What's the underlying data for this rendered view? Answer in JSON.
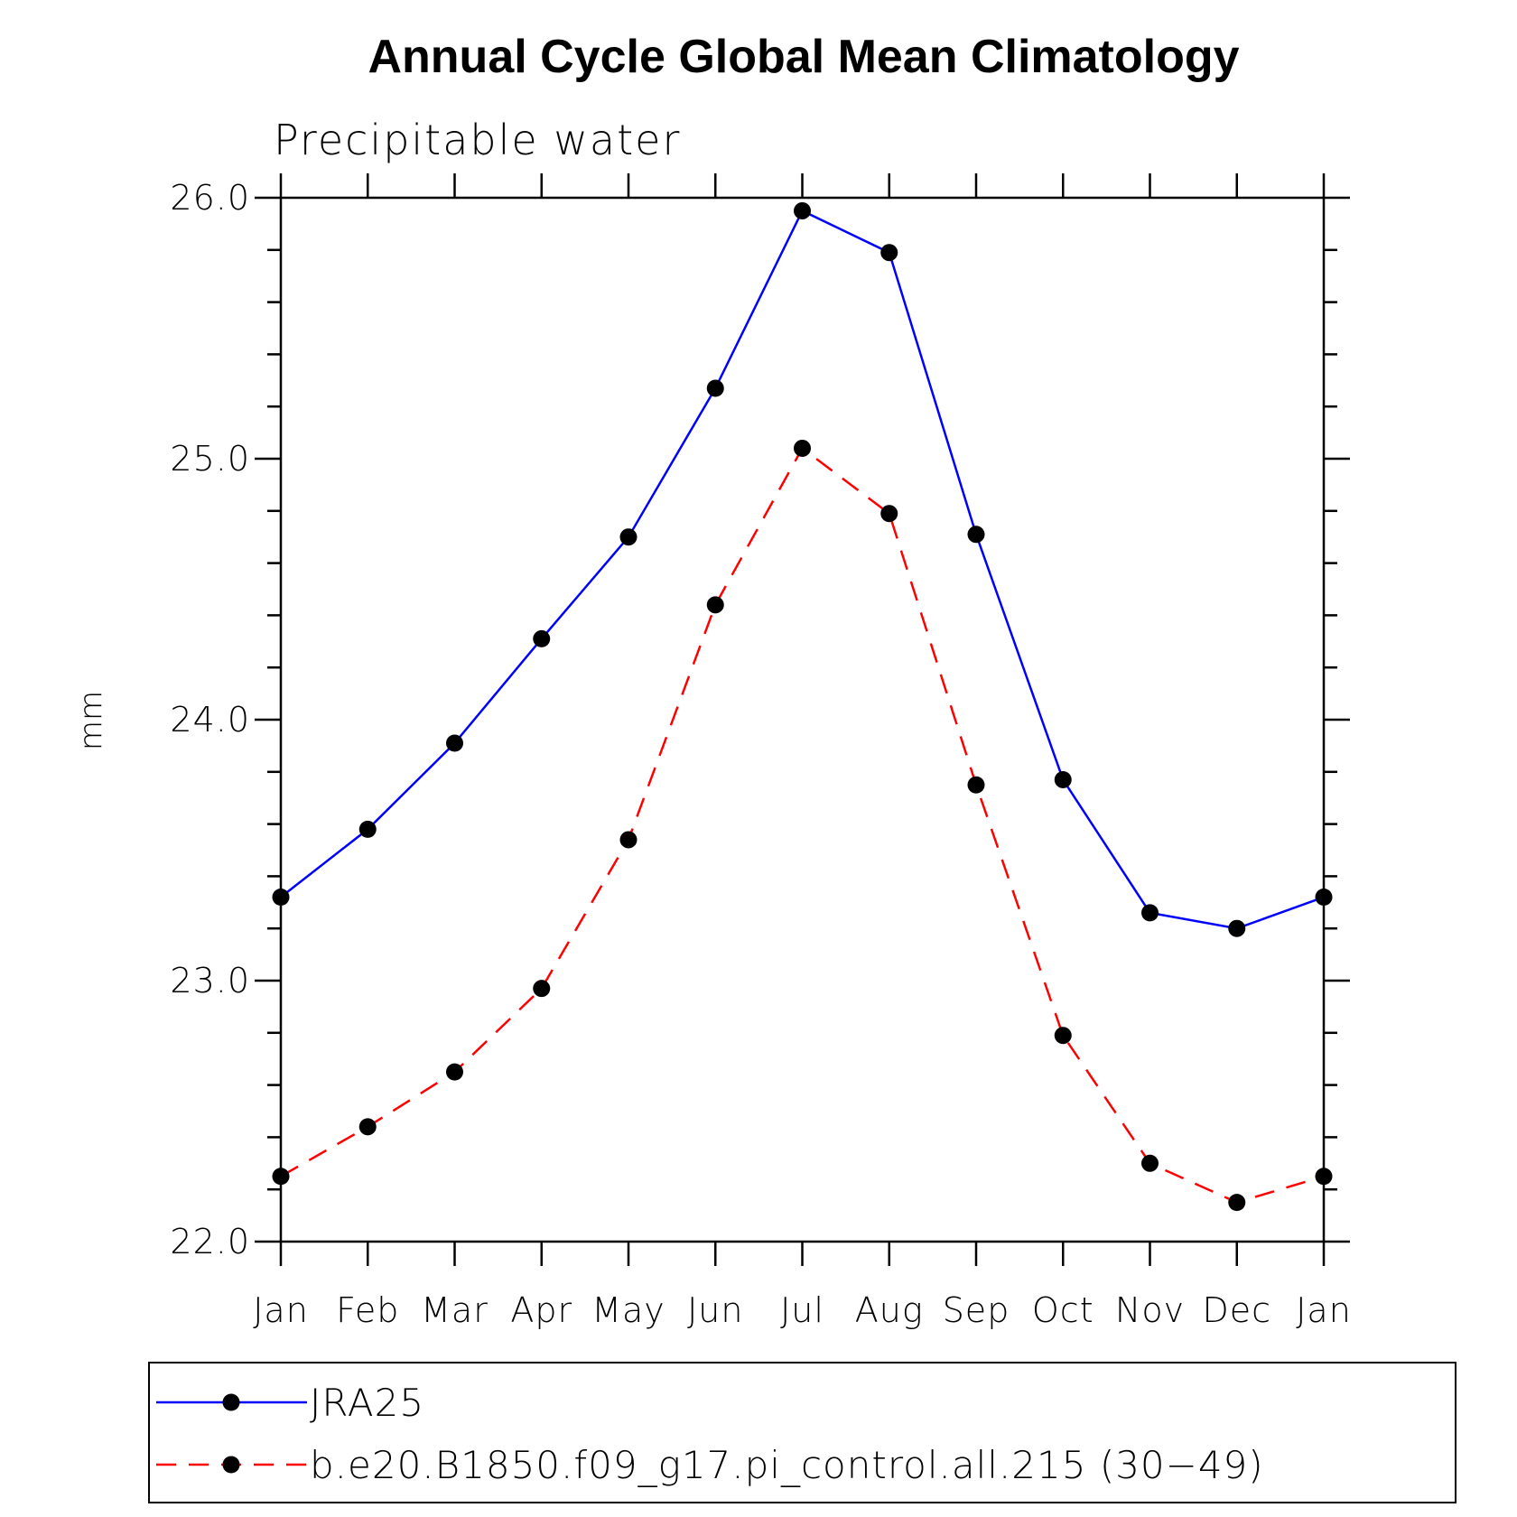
{
  "chart_data": {
    "type": "line",
    "title": "Annual Cycle Global Mean Climatology",
    "subtitle": "Precipitable water",
    "xlabel": "",
    "ylabel": "mm",
    "categories": [
      "Jan",
      "Feb",
      "Mar",
      "Apr",
      "May",
      "Jun",
      "Jul",
      "Aug",
      "Sep",
      "Oct",
      "Nov",
      "Dec",
      "Jan"
    ],
    "ylim": [
      22.0,
      26.0
    ],
    "y_ticks": [
      "22.0",
      "23.0",
      "24.0",
      "25.0",
      "26.0"
    ],
    "series": [
      {
        "name": "JRA25",
        "color": "#0000ff",
        "line_style": "solid",
        "marker": "filled-circle",
        "values": [
          23.32,
          23.58,
          23.91,
          24.31,
          24.7,
          25.27,
          25.95,
          25.79,
          24.71,
          23.77,
          23.26,
          23.2,
          23.32
        ]
      },
      {
        "name": "b.e20.B1850.f09_g17.pi_control.all.215 (30−49)",
        "color": "#ff0000",
        "line_style": "dashed",
        "marker": "filled-circle",
        "values": [
          22.25,
          22.44,
          22.65,
          22.97,
          23.54,
          24.44,
          25.04,
          24.79,
          23.75,
          22.79,
          22.3,
          22.15,
          22.25
        ]
      }
    ],
    "grid": false,
    "legend_position": "bottom"
  }
}
